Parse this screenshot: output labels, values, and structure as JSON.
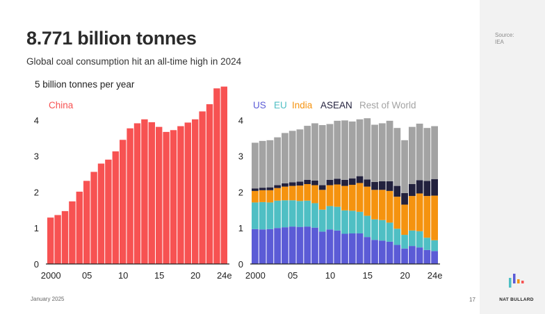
{
  "header": {
    "title": "8.771 billion tonnes",
    "subtitle": "Global coal consumption hit an all-time high in 2024"
  },
  "source": "Source:\nIEA",
  "footer": {
    "date": "January 2025",
    "page": "17",
    "brand": "NAT BULLARD"
  },
  "colors": {
    "china": "#f75252",
    "us": "#5b5bd6",
    "eu": "#4fbfc4",
    "india": "#f5930f",
    "asean": "#22213d",
    "rest_of_world": "#a3a3a3"
  },
  "chart_data": [
    {
      "type": "bar",
      "unit_label": "5 billion tonnes per year",
      "x_tick_labels": [
        "2000",
        "05",
        "10",
        "15",
        "20",
        "24e"
      ],
      "y_tick_labels": [
        "0",
        "1",
        "2",
        "3",
        "4"
      ],
      "ylim": [
        0,
        5
      ],
      "categories": [
        "2000",
        "2001",
        "2002",
        "2003",
        "2004",
        "2005",
        "2006",
        "2007",
        "2008",
        "2009",
        "2010",
        "2011",
        "2012",
        "2013",
        "2014",
        "2015",
        "2016",
        "2017",
        "2018",
        "2019",
        "2020",
        "2021",
        "2022",
        "2023",
        "2024e"
      ],
      "series": [
        {
          "name": "China",
          "color": "#f75252",
          "values": [
            1.29,
            1.36,
            1.47,
            1.74,
            2.01,
            2.31,
            2.56,
            2.79,
            2.9,
            3.13,
            3.45,
            3.77,
            3.91,
            4.02,
            3.94,
            3.81,
            3.67,
            3.72,
            3.83,
            3.93,
            4.02,
            4.24,
            4.44,
            4.88,
            4.93
          ]
        }
      ]
    },
    {
      "type": "bar",
      "stacked": true,
      "x_tick_labels": [
        "2000",
        "05",
        "10",
        "15",
        "20",
        "24e"
      ],
      "y_tick_labels": [
        "0",
        "1",
        "2",
        "3",
        "4"
      ],
      "ylim": [
        0,
        5
      ],
      "categories": [
        "2000",
        "2001",
        "2002",
        "2003",
        "2004",
        "2005",
        "2006",
        "2007",
        "2008",
        "2009",
        "2010",
        "2011",
        "2012",
        "2013",
        "2014",
        "2015",
        "2016",
        "2017",
        "2018",
        "2019",
        "2020",
        "2021",
        "2022",
        "2023",
        "2024e"
      ],
      "series": [
        {
          "name": "US",
          "color": "#5b5bd6",
          "values": [
            0.97,
            0.96,
            0.97,
            1.0,
            1.02,
            1.04,
            1.03,
            1.04,
            1.01,
            0.9,
            0.96,
            0.93,
            0.84,
            0.85,
            0.85,
            0.75,
            0.67,
            0.65,
            0.62,
            0.53,
            0.43,
            0.5,
            0.46,
            0.39,
            0.36
          ]
        },
        {
          "name": "EU",
          "color": "#4fbfc4",
          "values": [
            0.74,
            0.76,
            0.74,
            0.76,
            0.75,
            0.73,
            0.72,
            0.72,
            0.68,
            0.61,
            0.65,
            0.66,
            0.65,
            0.63,
            0.6,
            0.59,
            0.57,
            0.57,
            0.53,
            0.45,
            0.38,
            0.43,
            0.45,
            0.34,
            0.3
          ]
        },
        {
          "name": "India",
          "color": "#f5930f",
          "values": [
            0.32,
            0.33,
            0.34,
            0.35,
            0.38,
            0.4,
            0.43,
            0.46,
            0.5,
            0.55,
            0.58,
            0.62,
            0.68,
            0.72,
            0.8,
            0.81,
            0.82,
            0.84,
            0.88,
            0.89,
            0.84,
            0.96,
            1.05,
            1.16,
            1.24
          ]
        },
        {
          "name": "ASEAN",
          "color": "#22213d",
          "values": [
            0.07,
            0.07,
            0.08,
            0.08,
            0.09,
            0.1,
            0.11,
            0.12,
            0.13,
            0.13,
            0.15,
            0.16,
            0.17,
            0.18,
            0.19,
            0.2,
            0.22,
            0.24,
            0.27,
            0.3,
            0.32,
            0.33,
            0.37,
            0.42,
            0.46
          ]
        },
        {
          "name": "Rest of World",
          "color": "#a3a3a3",
          "values": [
            1.27,
            1.3,
            1.31,
            1.33,
            1.4,
            1.43,
            1.45,
            1.5,
            1.59,
            1.67,
            1.55,
            1.61,
            1.65,
            1.58,
            1.58,
            1.7,
            1.59,
            1.61,
            1.68,
            1.61,
            1.47,
            1.59,
            1.57,
            1.47,
            1.47
          ]
        }
      ]
    }
  ]
}
